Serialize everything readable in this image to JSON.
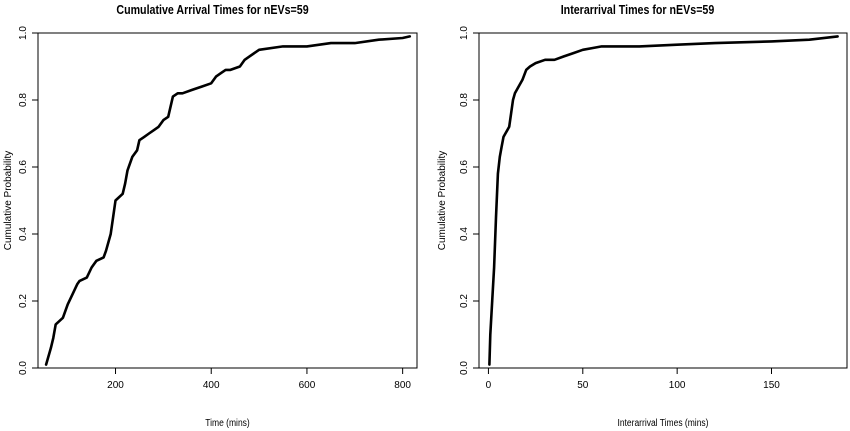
{
  "chart_data": [
    {
      "type": "line",
      "title": "Cumulative Arrival Times for nEVs=59",
      "xlabel": "Time (mins)",
      "ylabel": "Cumulative Probability",
      "xlim": [
        38,
        830
      ],
      "ylim": [
        0,
        1
      ],
      "xticks": [
        200,
        400,
        600,
        800
      ],
      "yticks": [
        0.0,
        0.2,
        0.4,
        0.6,
        0.8,
        1.0
      ],
      "ytick_labels": [
        "0.0",
        "0.2",
        "0.4",
        "0.6",
        "0.8",
        "1.0"
      ],
      "series": [
        {
          "x": [
            55,
            65,
            70,
            75,
            90,
            100,
            110,
            120,
            125,
            140,
            150,
            155,
            160,
            175,
            180,
            190,
            195,
            200,
            215,
            220,
            225,
            235,
            245,
            250,
            260,
            270,
            280,
            290,
            300,
            310,
            320,
            330,
            340,
            360,
            380,
            400,
            410,
            420,
            430,
            440,
            460,
            470,
            480,
            500,
            550,
            600,
            650,
            700,
            750,
            800,
            815
          ],
          "y": [
            0.01,
            0.06,
            0.09,
            0.13,
            0.15,
            0.19,
            0.22,
            0.25,
            0.26,
            0.27,
            0.3,
            0.31,
            0.32,
            0.33,
            0.35,
            0.4,
            0.45,
            0.5,
            0.52,
            0.55,
            0.59,
            0.63,
            0.65,
            0.68,
            0.69,
            0.7,
            0.71,
            0.72,
            0.74,
            0.75,
            0.81,
            0.82,
            0.82,
            0.83,
            0.84,
            0.85,
            0.87,
            0.88,
            0.89,
            0.89,
            0.9,
            0.92,
            0.93,
            0.95,
            0.96,
            0.96,
            0.97,
            0.97,
            0.98,
            0.985,
            0.99
          ]
        }
      ]
    },
    {
      "type": "line",
      "title": "Interarrival Times for nEVs=59",
      "xlabel": "Interarrival Times (mins)",
      "ylabel": "Cumulative Probability",
      "xlim": [
        -5,
        190
      ],
      "ylim": [
        0,
        1
      ],
      "xticks": [
        0,
        50,
        100,
        150
      ],
      "yticks": [
        0.0,
        0.2,
        0.4,
        0.6,
        0.8,
        1.0
      ],
      "ytick_labels": [
        "0.0",
        "0.2",
        "0.4",
        "0.6",
        "0.8",
        "1.0"
      ],
      "series": [
        {
          "x": [
            0.5,
            1,
            2,
            3,
            4,
            5,
            6,
            7,
            8,
            9,
            10,
            11,
            12,
            13,
            14,
            16,
            18,
            20,
            22,
            25,
            30,
            35,
            40,
            45,
            50,
            55,
            60,
            80,
            100,
            120,
            150,
            170,
            185
          ],
          "y": [
            0.01,
            0.1,
            0.2,
            0.3,
            0.45,
            0.58,
            0.63,
            0.66,
            0.69,
            0.7,
            0.71,
            0.72,
            0.76,
            0.8,
            0.82,
            0.84,
            0.86,
            0.89,
            0.9,
            0.91,
            0.92,
            0.92,
            0.93,
            0.94,
            0.95,
            0.955,
            0.96,
            0.96,
            0.965,
            0.97,
            0.975,
            0.98,
            0.99
          ]
        }
      ]
    }
  ]
}
